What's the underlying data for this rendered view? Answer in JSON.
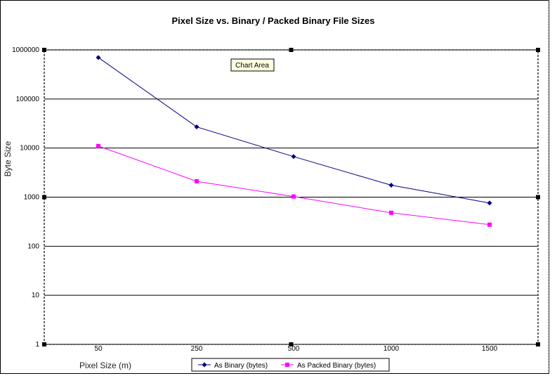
{
  "chart_data": {
    "type": "line",
    "title": "Pixel Size vs. Binary / Packed Binary File Sizes",
    "xlabel": "Pixel Size (m)",
    "ylabel": "Byte Size",
    "yscale": "log",
    "ylim": [
      1,
      1000000
    ],
    "yticks": [
      "1000000",
      "100000",
      "10000",
      "1000",
      "100",
      "10",
      "1"
    ],
    "categories": [
      "50",
      "250",
      "500",
      "1000",
      "1500"
    ],
    "series": [
      {
        "name": "As Binary (bytes)",
        "color": "#000080",
        "marker": "diamond",
        "values": [
          700000,
          27000,
          6700,
          1750,
          760
        ]
      },
      {
        "name": "As Packed Binary (bytes)",
        "color": "#ff00ff",
        "marker": "square",
        "values": [
          11000,
          2100,
          1030,
          480,
          275
        ]
      }
    ],
    "grid": true,
    "legend_position": "bottom-center"
  },
  "tooltip": {
    "label": "Chart Area"
  }
}
